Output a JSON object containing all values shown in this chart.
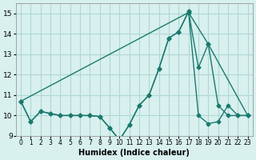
{
  "xlabel": "Humidex (Indice chaleur)",
  "ylabel": "",
  "bg_color": "#d8f0ee",
  "grid_color": "#b0d8d4",
  "line_color": "#1a7a6e",
  "xlim": [
    -0.5,
    23.5
  ],
  "ylim": [
    9,
    15.5
  ],
  "yticks": [
    9,
    10,
    11,
    12,
    13,
    14,
    15
  ],
  "xticks": [
    0,
    1,
    2,
    3,
    4,
    5,
    6,
    7,
    8,
    9,
    10,
    11,
    12,
    13,
    14,
    15,
    16,
    17,
    18,
    19,
    20,
    21,
    22,
    23
  ],
  "series1_x": [
    0,
    1,
    2,
    3,
    4,
    5,
    6,
    7,
    8,
    9,
    10,
    11,
    12,
    13,
    14,
    15,
    16,
    17,
    18,
    19,
    20,
    21,
    22,
    23
  ],
  "series1_y": [
    10.7,
    9.7,
    10.2,
    10.1,
    10.0,
    10.0,
    10.0,
    10.0,
    9.95,
    9.4,
    8.8,
    9.55,
    10.5,
    11.0,
    12.3,
    13.8,
    14.1,
    15.1,
    10.0,
    9.6,
    9.7,
    10.5,
    10.0,
    10.0
  ],
  "series2_x": [
    0,
    1,
    2,
    3,
    4,
    5,
    6,
    7,
    8,
    9,
    10,
    11,
    12,
    13,
    14,
    15,
    16,
    17,
    18,
    19,
    20,
    21,
    22,
    23
  ],
  "series2_y": [
    10.7,
    9.7,
    10.2,
    10.1,
    10.0,
    10.0,
    10.0,
    10.0,
    9.95,
    9.4,
    8.8,
    9.55,
    10.5,
    11.0,
    12.3,
    13.8,
    14.1,
    15.1,
    12.35,
    13.5,
    10.5,
    10.0,
    10.0,
    10.0
  ],
  "series3_x": [
    0,
    17,
    19,
    23
  ],
  "series3_y": [
    10.7,
    15.05,
    13.5,
    10.0
  ]
}
